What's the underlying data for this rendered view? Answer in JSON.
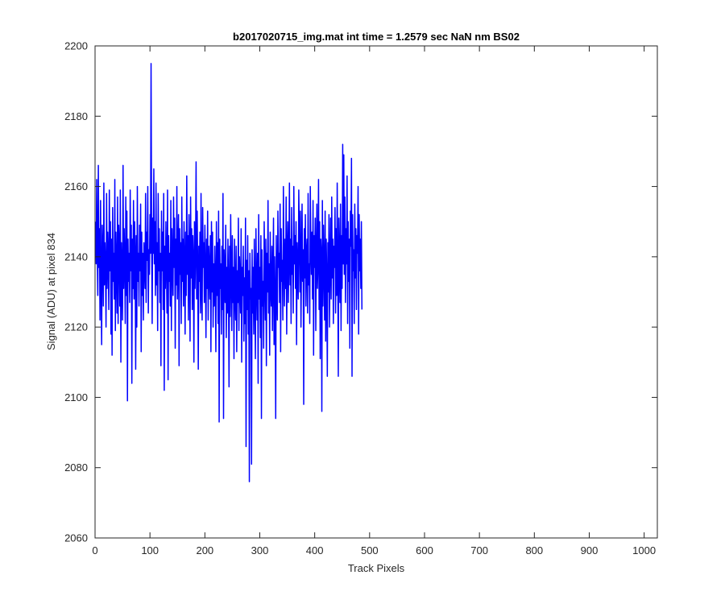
{
  "chart_data": {
    "type": "line",
    "title": "b2017020715_img.mat int time = 1.2579 sec  NaN nm BS02",
    "xlabel": "Track Pixels",
    "ylabel": "Signal (ADU) at pixel 834",
    "xlim": [
      0,
      1024
    ],
    "ylim": [
      2060,
      2200
    ],
    "xticks": [
      0,
      100,
      200,
      300,
      400,
      500,
      600,
      700,
      800,
      900,
      1000
    ],
    "yticks": [
      2060,
      2080,
      2100,
      2120,
      2140,
      2160,
      2180,
      2200
    ],
    "grid": false,
    "legend": "none",
    "colors": {
      "series": "#0000ff",
      "axes": "#262626",
      "background": "#ffffff"
    },
    "series": [
      {
        "x_start": 1,
        "x_step": 1,
        "values": [
          2150,
          2138,
          2162,
          2141,
          2129,
          2166,
          2137,
          2148,
          2122,
          2156,
          2134,
          2115,
          2149,
          2141,
          2126,
          2161,
          2132,
          2144,
          2137,
          2120,
          2158,
          2131,
          2147,
          2139,
          2125,
          2159,
          2136,
          2150,
          2118,
          2145,
          2112,
          2154,
          2133,
          2141,
          2128,
          2162,
          2119,
          2147,
          2138,
          2124,
          2157,
          2121,
          2149,
          2143,
          2126,
          2159,
          2110,
          2144,
          2135,
          2122,
          2166,
          2131,
          2148,
          2139,
          2121,
          2157,
          2129,
          2153,
          2099,
          2145,
          2133,
          2141,
          2127,
          2159,
          2136,
          2149,
          2104,
          2145,
          2131,
          2156,
          2128,
          2150,
          2140,
          2108,
          2146,
          2120,
          2160,
          2133,
          2141,
          2126,
          2149,
          2136,
          2155,
          2113,
          2147,
          2129,
          2141,
          2122,
          2144,
          2138,
          2131,
          2158,
          2127,
          2147,
          2139,
          2160,
          2124,
          2142,
          2135,
          2152,
          2141,
          2195,
          2146,
          2121,
          2151,
          2141,
          2165,
          2138,
          2150,
          2129,
          2161,
          2132,
          2144,
          2119,
          2158,
          2136,
          2148,
          2127,
          2141,
          2109,
          2153,
          2136,
          2147,
          2125,
          2158,
          2102,
          2143,
          2131,
          2150,
          2138,
          2124,
          2159,
          2105,
          2146,
          2133,
          2141,
          2126,
          2156,
          2119,
          2148,
          2138,
          2129,
          2157,
          2137,
          2151,
          2114,
          2145,
          2132,
          2160,
          2128,
          2141,
          2152,
          2109,
          2148,
          2135,
          2144,
          2121,
          2157,
          2133,
          2145,
          2126,
          2150,
          2139,
          2118,
          2147,
          2129,
          2163,
          2135,
          2146,
          2122,
          2152,
          2141,
          2116,
          2157,
          2134,
          2148,
          2125,
          2146,
          2139,
          2110,
          2150,
          2131,
          2142,
          2167,
          2128,
          2153,
          2136,
          2108,
          2143,
          2133,
          2147,
          2124,
          2158,
          2131,
          2122,
          2154,
          2137,
          2144,
          2127,
          2149,
          2136,
          2117,
          2145,
          2131,
          2153,
          2122,
          2143,
          2137,
          2128,
          2146,
          2113,
          2150,
          2130,
          2147,
          2120,
          2138,
          2126,
          2143,
          2133,
          2113,
          2150,
          2129,
          2144,
          2121,
          2153,
          2093,
          2145,
          2131,
          2138,
          2118,
          2143,
          2125,
          2158,
          2094,
          2142,
          2136,
          2127,
          2149,
          2117,
          2137,
          2124,
          2145,
          2131,
          2103,
          2143,
          2123,
          2152,
          2134,
          2119,
          2146,
          2127,
          2137,
          2111,
          2145,
          2130,
          2122,
          2143,
          2113,
          2136,
          2127,
          2151,
          2119,
          2140,
          2133,
          2124,
          2148,
          2110,
          2137,
          2129,
          2143,
          2116,
          2134,
          2121,
          2151,
          2086,
          2139,
          2125,
          2146,
          2118,
          2136,
          2076,
          2141,
          2128,
          2131,
          2081,
          2142,
          2124,
          2137,
          2118,
          2145,
          2129,
          2111,
          2148,
          2133,
          2122,
          2141,
          2104,
          2152,
          2128,
          2137,
          2117,
          2146,
          2094,
          2142,
          2126,
          2133,
          2114,
          2150,
          2135,
          2122,
          2145,
          2109,
          2141,
          2130,
          2156,
          2124,
          2138,
          2112,
          2147,
          2131,
          2126,
          2143,
          2119,
          2136,
          2151,
          2115,
          2140,
          2128,
          2094,
          2146,
          2132,
          2122,
          2153,
          2137,
          2141,
          2127,
          2155,
          2113,
          2148,
          2133,
          2139,
          2122,
          2160,
          2138,
          2126,
          2145,
          2131,
          2157,
          2118,
          2142,
          2150,
          2127,
          2139,
          2161,
          2132,
          2145,
          2121,
          2154,
          2135,
          2143,
          2124,
          2160,
          2138,
          2146,
          2131,
          2150,
          2115,
          2144,
          2136,
          2128,
          2159,
          2147,
          2130,
          2153,
          2120,
          2139,
          2155,
          2133,
          2142,
          2098,
          2148,
          2134,
          2152,
          2126,
          2141,
          2145,
          2124,
          2158,
          2132,
          2138,
          2121,
          2160,
          2143,
          2135,
          2147,
          2128,
          2156,
          2112,
          2146,
          2137,
          2151,
          2119,
          2141,
          2155,
          2131,
          2139,
          2162,
          2125,
          2150,
          2111,
          2145,
          2141,
          2096,
          2156,
          2126,
          2149,
          2137,
          2122,
          2153,
          2116,
          2145,
          2134,
          2106,
          2144,
          2130,
          2152,
          2120,
          2139,
          2151,
          2128,
          2157,
          2134,
          2145,
          2121,
          2143,
          2137,
          2154,
          2124,
          2148,
          2129,
          2161,
          2136,
          2106,
          2151,
          2140,
          2127,
          2155,
          2119,
          2146,
          2131,
          2172,
          2138,
          2169,
          2135,
          2157,
          2127,
          2148,
          2138,
          2163,
          2121,
          2150,
          2133,
          2145,
          2114,
          2153,
          2143,
          2168,
          2106,
          2152,
          2136,
          2142,
          2121,
          2155,
          2134,
          2148,
          2125,
          2146,
          2141,
          2160,
          2118,
          2152,
          2136,
          2145,
          2131,
          2150,
          2125
        ]
      }
    ]
  }
}
